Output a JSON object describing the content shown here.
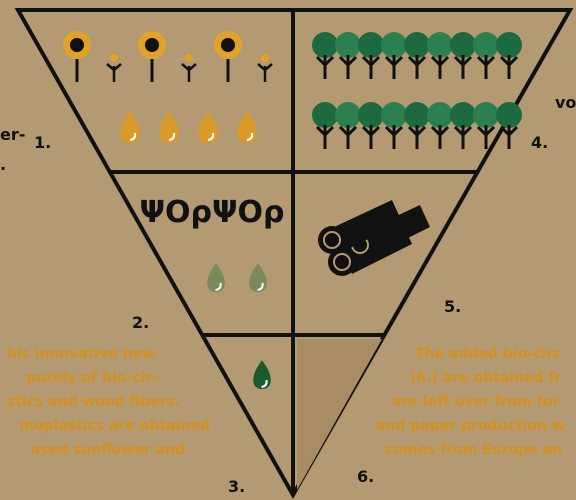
{
  "segments": {
    "left_cut_1": "er-",
    "left_cut_2": ".",
    "right_cut": "vo",
    "labels": [
      "1.",
      "2.",
      "3.",
      "4.",
      "5.",
      "6."
    ]
  },
  "left_text": [
    "his innovative new",
    "purely of bio-cir-",
    "stics and wood fibers.",
    "moplastics are obtained",
    "used sunflower and"
  ],
  "right_text": [
    "The added bio-circ",
    "(6.) are obtained fr",
    "are left over from for",
    "and paper production w",
    "comes from Europe an"
  ]
}
